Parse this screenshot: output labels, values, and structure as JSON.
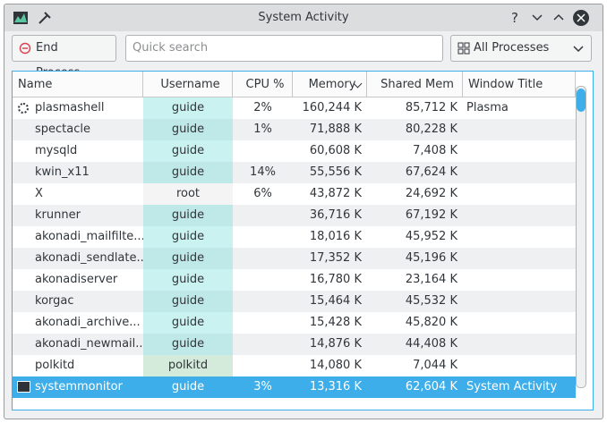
{
  "window": {
    "title": "System Activity"
  },
  "toolbar": {
    "end_process": "End Process...",
    "search_placeholder": "Quick search",
    "filter": "All Processes"
  },
  "table": {
    "columns": [
      "Name",
      "Username",
      "CPU %",
      "Memory",
      "Shared Mem",
      "Window Title"
    ],
    "rows": [
      {
        "name": "plasmashell",
        "user": "guide",
        "cpu": "2%",
        "memory": "160,244 K",
        "shared": "85,712 K",
        "window": "Plasma"
      },
      {
        "name": "spectacle",
        "user": "guide",
        "cpu": "1%",
        "memory": "71,888 K",
        "shared": "80,228 K"
      },
      {
        "name": "mysqld",
        "user": "guide",
        "memory": "60,608 K",
        "shared": "7,408 K"
      },
      {
        "name": "kwin_x11",
        "user": "guide",
        "cpu": "14%",
        "memory": "55,556 K",
        "shared": "67,624 K"
      },
      {
        "name": "X",
        "user": "root",
        "cpu": "6%",
        "memory": "43,872 K",
        "shared": "24,692 K"
      },
      {
        "name": "krunner",
        "user": "guide",
        "memory": "36,716 K",
        "shared": "67,192 K"
      },
      {
        "name": "akonadi_mailfilte...",
        "user": "guide",
        "memory": "18,016 K",
        "shared": "45,952 K"
      },
      {
        "name": "akonadi_sendlate...",
        "user": "guide",
        "memory": "17,352 K",
        "shared": "45,196 K"
      },
      {
        "name": "akonadiserver",
        "user": "guide",
        "memory": "16,780 K",
        "shared": "23,164 K"
      },
      {
        "name": "korgac",
        "user": "guide",
        "memory": "15,464 K",
        "shared": "45,532 K"
      },
      {
        "name": "akonadi_archive...",
        "user": "guide",
        "memory": "15,428 K",
        "shared": "45,820 K"
      },
      {
        "name": "akonadi_newmail...",
        "user": "guide",
        "memory": "14,876 K",
        "shared": "44,408 K"
      },
      {
        "name": "polkitd",
        "user": "polkitd",
        "memory": "14,080 K",
        "shared": "7,044 K"
      },
      {
        "name": "systemmonitor",
        "user": "guide",
        "cpu": "3%",
        "memory": "13,316 K",
        "shared": "62,604 K",
        "window": "System Activity"
      }
    ]
  }
}
